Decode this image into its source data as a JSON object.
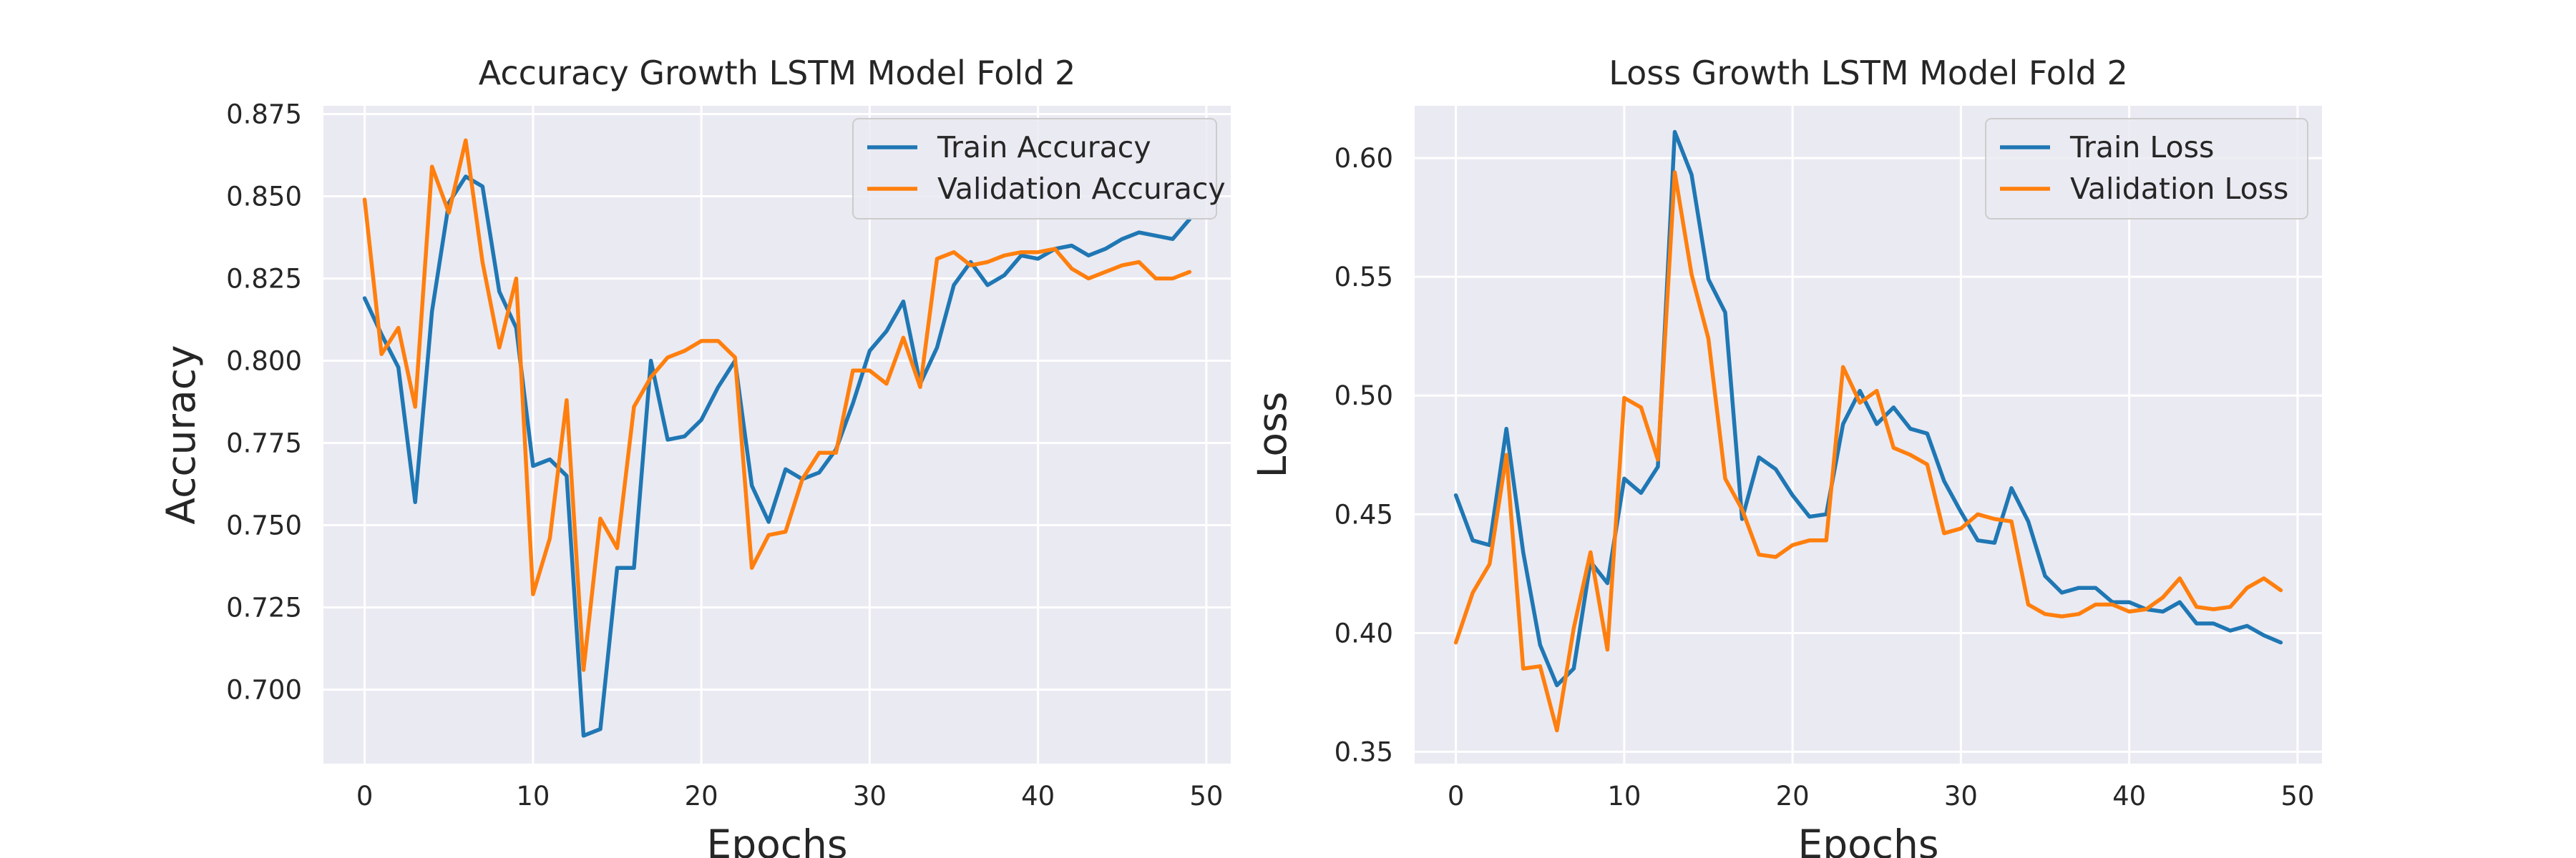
{
  "colors": {
    "train": "#1f77b4",
    "validation": "#ff7f0e",
    "plot_bg": "#eaeaf2",
    "grid": "#ffffff"
  },
  "chart_data": [
    {
      "type": "line",
      "title": "Accuracy Growth LSTM Model Fold 2",
      "xlabel": "Epochs",
      "ylabel": "Accuracy",
      "xlim": [
        -2.45,
        51.45
      ],
      "ylim": [
        0.6775,
        0.8775
      ],
      "xticks": [
        0,
        10,
        20,
        30,
        40,
        50
      ],
      "xtick_labels": [
        "0",
        "10",
        "20",
        "30",
        "40",
        "50"
      ],
      "yticks": [
        0.7,
        0.725,
        0.75,
        0.775,
        0.8,
        0.825,
        0.85,
        0.875
      ],
      "ytick_labels": [
        "0.700",
        "0.725",
        "0.750",
        "0.775",
        "0.800",
        "0.825",
        "0.850",
        "0.875"
      ],
      "grid": true,
      "legend_position": "top-right",
      "x": [
        0,
        1,
        2,
        3,
        4,
        5,
        6,
        7,
        8,
        9,
        10,
        11,
        12,
        13,
        14,
        15,
        16,
        17,
        18,
        19,
        20,
        21,
        22,
        23,
        24,
        25,
        26,
        27,
        28,
        29,
        30,
        31,
        32,
        33,
        34,
        35,
        36,
        37,
        38,
        39,
        40,
        41,
        42,
        43,
        44,
        45,
        46,
        47,
        48,
        49
      ],
      "series": [
        {
          "name": "Train Accuracy",
          "color": "#1f77b4",
          "values": [
            0.819,
            0.808,
            0.798,
            0.757,
            0.815,
            0.848,
            0.856,
            0.853,
            0.821,
            0.81,
            0.768,
            0.77,
            0.765,
            0.686,
            0.688,
            0.737,
            0.737,
            0.8,
            0.776,
            0.777,
            0.782,
            0.792,
            0.8,
            0.762,
            0.751,
            0.767,
            0.764,
            0.766,
            0.773,
            0.787,
            0.803,
            0.809,
            0.818,
            0.793,
            0.804,
            0.823,
            0.83,
            0.823,
            0.826,
            0.832,
            0.831,
            0.834,
            0.835,
            0.832,
            0.834,
            0.837,
            0.839,
            0.838,
            0.837,
            0.843
          ]
        },
        {
          "name": "Validation Accuracy",
          "color": "#ff7f0e",
          "values": [
            0.849,
            0.802,
            0.81,
            0.786,
            0.859,
            0.845,
            0.867,
            0.83,
            0.804,
            0.825,
            0.729,
            0.746,
            0.788,
            0.706,
            0.752,
            0.743,
            0.786,
            0.795,
            0.801,
            0.803,
            0.806,
            0.806,
            0.801,
            0.737,
            0.747,
            0.748,
            0.764,
            0.772,
            0.772,
            0.797,
            0.797,
            0.793,
            0.807,
            0.792,
            0.831,
            0.833,
            0.829,
            0.83,
            0.832,
            0.833,
            0.833,
            0.834,
            0.828,
            0.825,
            0.827,
            0.829,
            0.83,
            0.825,
            0.825,
            0.827
          ]
        }
      ]
    },
    {
      "type": "line",
      "title": "Loss Growth LSTM Model Fold 2",
      "xlabel": "Epochs",
      "ylabel": "Loss",
      "xlim": [
        -2.45,
        51.45
      ],
      "ylim": [
        0.345,
        0.622
      ],
      "xticks": [
        0,
        10,
        20,
        30,
        40,
        50
      ],
      "xtick_labels": [
        "0",
        "10",
        "20",
        "30",
        "40",
        "50"
      ],
      "yticks": [
        0.35,
        0.4,
        0.45,
        0.5,
        0.55,
        0.6
      ],
      "ytick_labels": [
        "0.35",
        "0.40",
        "0.45",
        "0.50",
        "0.55",
        "0.60"
      ],
      "grid": true,
      "legend_position": "top-right",
      "x": [
        0,
        1,
        2,
        3,
        4,
        5,
        6,
        7,
        8,
        9,
        10,
        11,
        12,
        13,
        14,
        15,
        16,
        17,
        18,
        19,
        20,
        21,
        22,
        23,
        24,
        25,
        26,
        27,
        28,
        29,
        30,
        31,
        32,
        33,
        34,
        35,
        36,
        37,
        38,
        39,
        40,
        41,
        42,
        43,
        44,
        45,
        46,
        47,
        48,
        49
      ],
      "series": [
        {
          "name": "Train Loss",
          "color": "#1f77b4",
          "values": [
            0.458,
            0.439,
            0.437,
            0.486,
            0.434,
            0.395,
            0.378,
            0.385,
            0.43,
            0.421,
            0.465,
            0.459,
            0.47,
            0.611,
            0.593,
            0.549,
            0.535,
            0.448,
            0.474,
            0.469,
            0.458,
            0.449,
            0.45,
            0.488,
            0.502,
            0.488,
            0.495,
            0.486,
            0.484,
            0.464,
            0.451,
            0.439,
            0.438,
            0.461,
            0.447,
            0.424,
            0.417,
            0.419,
            0.419,
            0.413,
            0.413,
            0.41,
            0.409,
            0.413,
            0.404,
            0.404,
            0.401,
            0.403,
            0.399,
            0.396
          ]
        },
        {
          "name": "Validation Loss",
          "color": "#ff7f0e",
          "values": [
            0.396,
            0.417,
            0.429,
            0.475,
            0.385,
            0.386,
            0.359,
            0.402,
            0.434,
            0.393,
            0.499,
            0.495,
            0.473,
            0.594,
            0.551,
            0.524,
            0.465,
            0.452,
            0.433,
            0.432,
            0.437,
            0.439,
            0.439,
            0.512,
            0.497,
            0.502,
            0.478,
            0.475,
            0.471,
            0.442,
            0.444,
            0.45,
            0.448,
            0.447,
            0.412,
            0.408,
            0.407,
            0.408,
            0.412,
            0.412,
            0.409,
            0.41,
            0.415,
            0.423,
            0.411,
            0.41,
            0.411,
            0.419,
            0.423,
            0.418
          ]
        }
      ]
    }
  ]
}
